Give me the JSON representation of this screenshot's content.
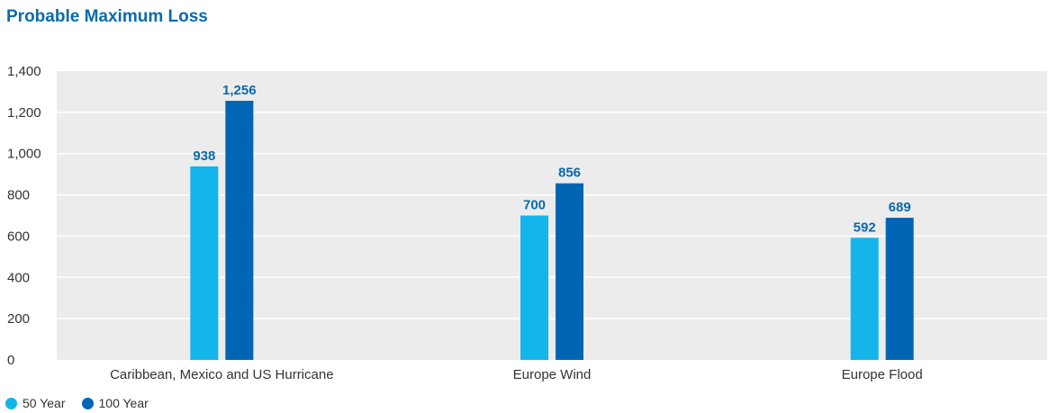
{
  "colors": {
    "series_50": "#13b5ea",
    "series_100": "#0066b3",
    "data_label": "#0a6aad",
    "title": "#0a6aad",
    "plot_background": "#ececed",
    "gridline": "#ffffff",
    "axis_text": "#333333"
  },
  "chart_data": {
    "type": "bar",
    "title": "Probable Maximum Loss",
    "categories": [
      "Caribbean, Mexico and US Hurricane",
      "Europe Wind",
      "Europe Flood"
    ],
    "series": [
      {
        "name": "50 Year",
        "values": [
          938,
          700,
          592
        ]
      },
      {
        "name": "100 Year",
        "values": [
          1256,
          856,
          689
        ]
      }
    ],
    "value_labels": [
      [
        "938",
        "700",
        "592"
      ],
      [
        "1,256",
        "856",
        "689"
      ]
    ],
    "xlabel": "",
    "ylabel": "",
    "ylim": [
      0,
      1400
    ],
    "yticks": [
      0,
      200,
      400,
      600,
      800,
      1000,
      1200,
      1400
    ],
    "ytick_labels": [
      "0",
      "200",
      "400",
      "600",
      "800",
      "1,000",
      "1,200",
      "1,400"
    ],
    "grid": true,
    "legend": "bottom-left"
  }
}
